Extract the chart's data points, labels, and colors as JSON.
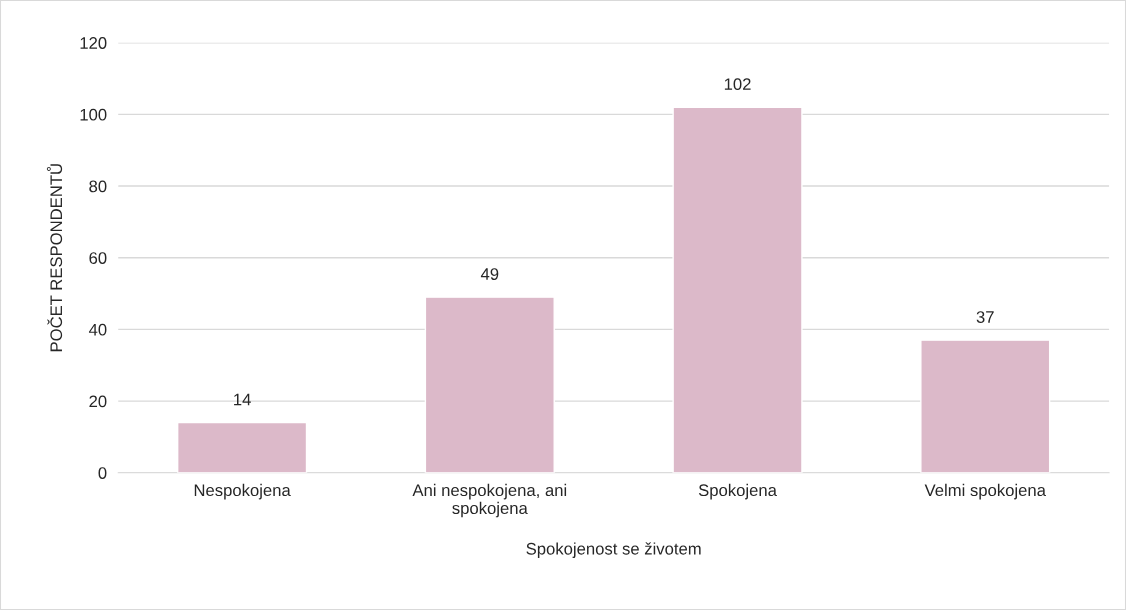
{
  "chart_data": {
    "type": "bar",
    "categories": [
      "Nespokojena",
      "Ani nespokojena, ani\nspokojena",
      "Spokojena",
      "Velmi spokojena"
    ],
    "values": [
      14,
      49,
      102,
      37
    ],
    "color": "#dcb9c9",
    "xlabel": "Spokojenost se životem",
    "ylabel": "POČET RESPONDENTŮ",
    "ylim": [
      0,
      120
    ],
    "yticks": [
      0,
      20,
      40,
      60,
      80,
      100,
      120
    ],
    "grid": "y",
    "data_labels": true
  }
}
